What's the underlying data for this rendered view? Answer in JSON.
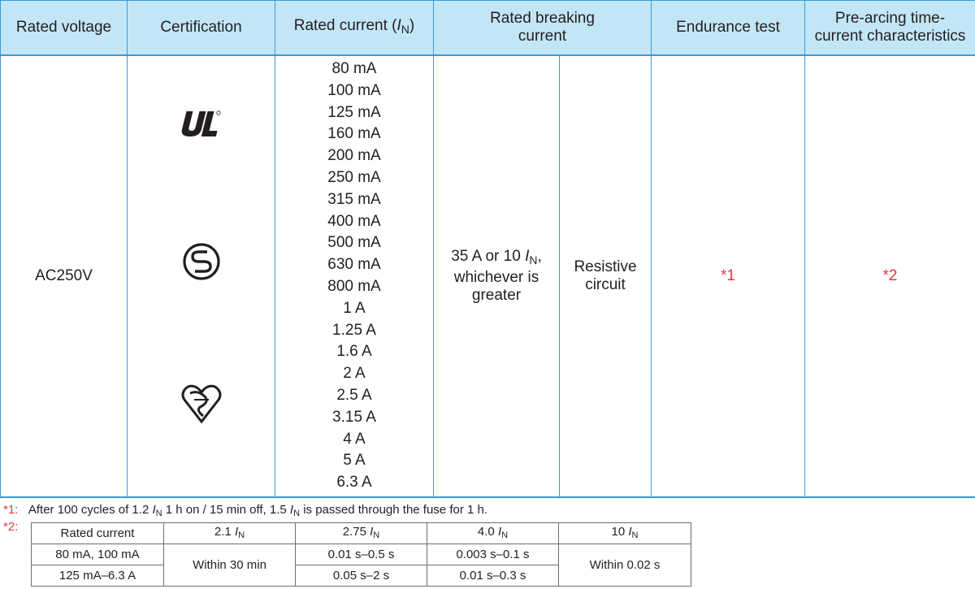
{
  "header": {
    "rated_voltage": "Rated voltage",
    "certification": "Certification",
    "rated_current_prefix": "Rated current (",
    "rated_current_symbol": "I",
    "rated_current_sub": "N",
    "rated_current_suffix": ")",
    "rated_breaking_line1": "Rated breaking",
    "rated_breaking_line2": "current",
    "endurance_test": "Endurance test",
    "prearcing_line1": "Pre-arcing time-",
    "prearcing_line2": "current characteristics"
  },
  "row": {
    "voltage": "AC250V",
    "currents": [
      "80 mA",
      "100 mA",
      "125 mA",
      "160 mA",
      "200 mA",
      "250 mA",
      "315 mA",
      "400 mA",
      "500 mA",
      "630 mA",
      "800 mA",
      "1 A",
      "1.25 A",
      "1.6 A",
      "2 A",
      "2.5 A",
      "3.15 A",
      "4 A",
      "5 A",
      "6.3 A"
    ],
    "breaking_line1_prefix": "35 A or 10 ",
    "breaking_symbol": "I",
    "breaking_sub": "N",
    "breaking_line1_suffix": ",",
    "breaking_line2": "whichever is",
    "breaking_line3": "greater",
    "circuit_line1": "Resistive",
    "circuit_line2": "circuit",
    "endurance_ref": "*1",
    "prearcing_ref": "*2",
    "cert_logos": [
      "ul-recognized-icon",
      "s-mark-icon",
      "kitemark-icon"
    ]
  },
  "notes": {
    "note1_mark": "*1:",
    "note1_a": "After 100 cycles of 1.2 ",
    "note1_sym1": "I",
    "note1_sub1": "N",
    "note1_b": " 1 h on / 15 min off, 1.5 ",
    "note1_sym2": "I",
    "note1_sub2": "N",
    "note1_c": " is passed through the fuse for 1 h.",
    "note2_mark": "*2:"
  },
  "char_table": {
    "h_rated": "Rated current",
    "h_c1_num": "2.1 ",
    "h_c2_num": "2.75 ",
    "h_c3_num": "4.0 ",
    "h_c4_num": "10 ",
    "symbol": "I",
    "sub": "N",
    "r1_label": "80 mA, 100 mA",
    "r2_label": "125 mA–6.3 A",
    "within30": "Within 30 min",
    "r1_c2": "0.01 s–0.5 s",
    "r1_c3": "0.003 s–0.1 s",
    "r2_c2": "0.05 s–2 s",
    "r2_c3": "0.01 s–0.3 s",
    "within002": "Within 0.02 s"
  }
}
